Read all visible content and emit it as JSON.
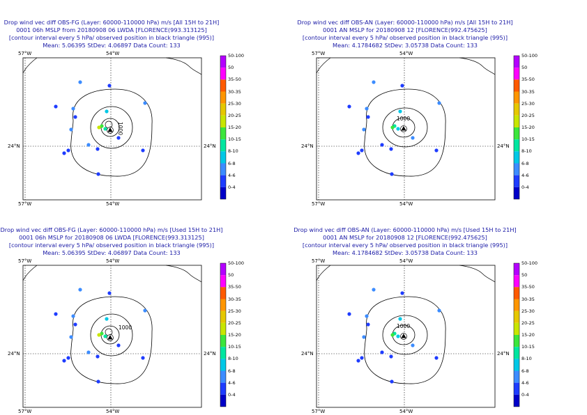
{
  "panels": [
    {
      "title": [
        "Drop wind vec diff OBS-FG (Layer: 60000-110000 hPa) m/s [All 15H to 21H]",
        "0001 06h MSLP from 20180908 06 LWDA [FLORENCE(993.313125]",
        "[contour interval every 5 hPa/ observed position in black triangle (995)]",
        "Mean: 5.06395 StDev: 4.06897 Data Count: 133"
      ],
      "contour_label": "1000",
      "contour_label_vertical": true
    },
    {
      "title": [
        "Drop wind vec diff OBS-AN (Layer: 60000-110000 hPa) m/s [All 15H to 21H]",
        "0001 AN MSLP for 20180908 12 [FLORENCE(992.475625]",
        "[contour interval every 5 hPa/ observed position in black triangle (995)]",
        "Mean: 4.1784682 StDev: 3.05738 Data Count: 133"
      ],
      "contour_label": "1000",
      "contour_label_vertical": false
    },
    {
      "title": [
        "Drop wind vec diff OBS-FG (Layer: 60000-110000 hPa) m/s [Used 15H to 21H]",
        "0001 06h MSLP for 20180908 06 LWDA [FLORENCE(993.313125]",
        "[contour interval every 5 hPa/ observed position in black triangle (995)]",
        "Mean: 5.06395 StDev: 4.06897 Data Count: 133"
      ],
      "contour_label": "1000",
      "contour_label_vertical": false
    },
    {
      "title": [
        "Drop wind vec diff OBS-AN (Layer: 60000-110000 hPa) m/s [Used 15H to 21H]",
        "0001 AN MSLP for 20180908 12 [FLORENCE(992.475625]",
        "[contour interval every 5 hPa/ observed position in black triangle (995)]",
        "Mean: 4.1784682 StDev: 3.05738 Data Count: 133"
      ],
      "contour_label": "1000",
      "contour_label_vertical": false
    }
  ],
  "axis_labels": {
    "top_left": "57°W",
    "top_mid": "54°W",
    "left_lat": "24°N",
    "right_lat": "24°N",
    "bottom_left": "57°W",
    "bottom_mid": "54°W"
  },
  "colorbar": {
    "labels": [
      "50-100",
      "50",
      "35-50",
      "30-35",
      "25-30",
      "20-25",
      "15-20",
      "10-15",
      "8-10",
      "6-8",
      "4-6",
      "0-4"
    ],
    "colors": [
      "#b400ff",
      "#ff00ff",
      "#ff5a00",
      "#ff9600",
      "#e6c800",
      "#c8e600",
      "#3ce63c",
      "#00e6a0",
      "#00c8e6",
      "#3c8cff",
      "#1e3cff",
      "#0000c8"
    ]
  },
  "observations": [
    {
      "color": "#3c8cff",
      "panel_sets": "all"
    }
  ],
  "colors": {
    "title": "#1a1aa6",
    "frame": "#000000",
    "contour": "#000000"
  }
}
